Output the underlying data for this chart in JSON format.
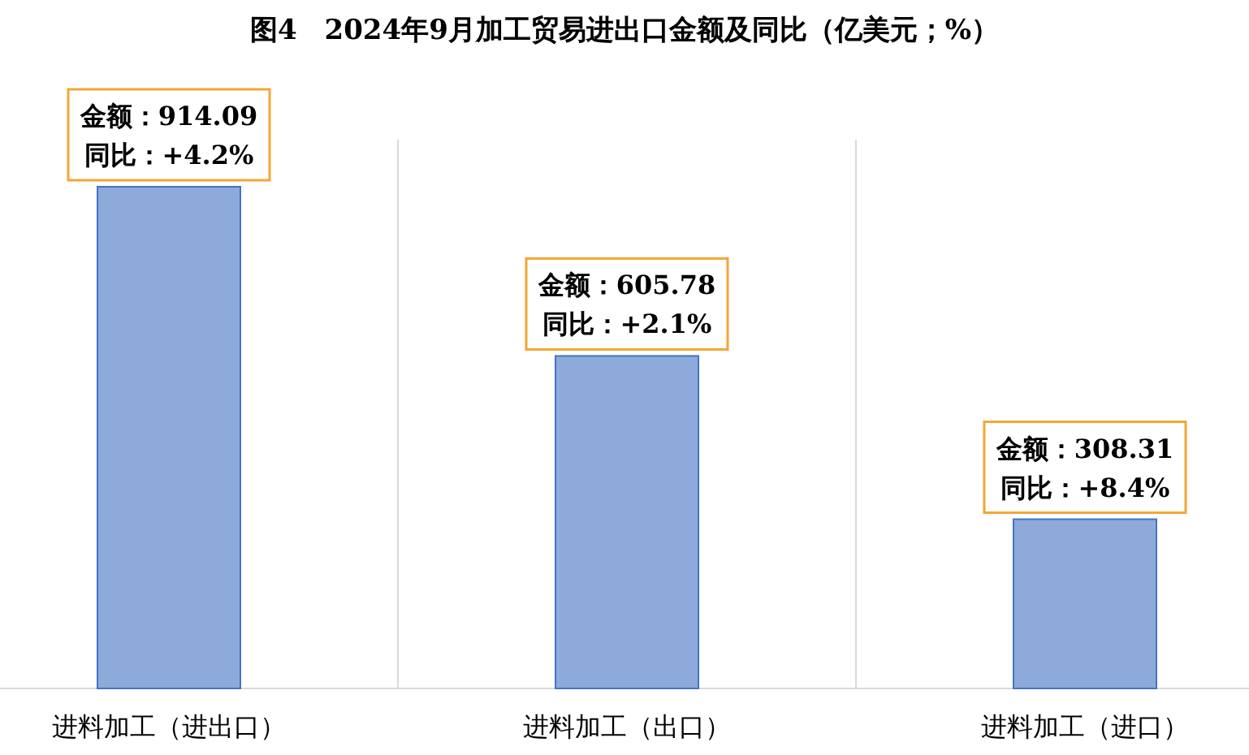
{
  "chart_data": {
    "type": "bar",
    "title": "图4　2024年9月加工贸易进出口金额及同比（亿美元；%）",
    "categories": [
      "进料加工（进出口）",
      "进料加工（出口）",
      "进料加工（进口）"
    ],
    "values": [
      914.09,
      605.78,
      308.31
    ],
    "value_labels": [
      "金额：914.09\n同比：+4.2%",
      "金额：605.78\n同比：+2.1%",
      "金额：308.31\n同比：+8.4%"
    ],
    "color": "#8eaadb",
    "grid": "x"
  }
}
